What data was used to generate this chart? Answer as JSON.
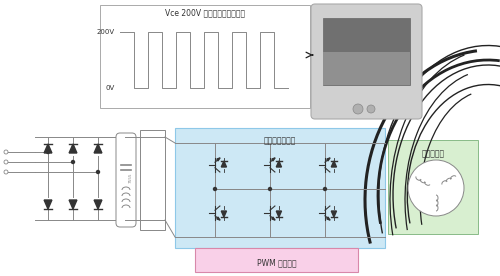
{
  "waveform_label": "Vce 200V のスイッチング信号",
  "waveform_200v": "200V",
  "waveform_0v": "0V",
  "inverter_label": "インバータ回路",
  "pwm_label": "PWM 制御回路",
  "motor_label": "モータ回路",
  "bg_color": "#ffffff",
  "inverter_bg": "#cde8f5",
  "pwm_bg": "#f9d0e8",
  "motor_bg": "#d8efd0",
  "line_color": "#888888",
  "dark_color": "#333333",
  "wire_color": "#222222"
}
